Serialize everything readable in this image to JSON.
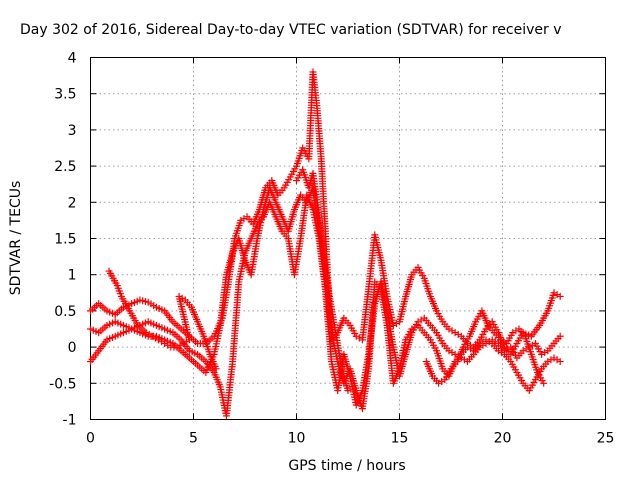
{
  "chart_data": {
    "type": "scatter",
    "title": "Day 302 of 2016, Sidereal Day-to-day VTEC variation (SDTVAR) for receiver v",
    "xlabel": "GPS time / hours",
    "ylabel": "SDTVAR / TECUs",
    "xlim": [
      0,
      25
    ],
    "ylim": [
      -1,
      4
    ],
    "x_ticks": [
      0,
      5,
      10,
      15,
      20,
      25
    ],
    "y_ticks": [
      -1,
      -0.5,
      0,
      0.5,
      1,
      1.5,
      2,
      2.5,
      3,
      3.5,
      4
    ],
    "x_tick_labels": [
      "0",
      "5",
      "10",
      "15",
      "20",
      "25"
    ],
    "y_tick_labels": [
      "-1",
      "-0.5",
      "0",
      "0.5",
      "1",
      "1.5",
      "2",
      "2.5",
      "3",
      "3.5",
      "4"
    ],
    "grid": true,
    "marker": "+",
    "color": "#ff0000",
    "series": [
      {
        "points": [
          [
            0.0,
            0.5
          ],
          [
            0.4,
            0.6
          ],
          [
            0.8,
            0.5
          ],
          [
            1.2,
            0.45
          ],
          [
            1.6,
            0.55
          ],
          [
            2.0,
            0.6
          ],
          [
            2.4,
            0.65
          ],
          [
            2.8,
            0.62
          ],
          [
            3.2,
            0.55
          ],
          [
            3.6,
            0.5
          ],
          [
            4.0,
            0.35
          ],
          [
            4.4,
            0.25
          ],
          [
            4.8,
            0.15
          ],
          [
            5.2,
            0.05
          ],
          [
            5.6,
            0.05
          ],
          [
            6.0,
            0.15
          ],
          [
            6.4,
            0.4
          ],
          [
            6.7,
            0.9
          ],
          [
            7.0,
            1.5
          ],
          [
            7.3,
            1.75
          ],
          [
            7.6,
            1.8
          ],
          [
            7.9,
            1.7
          ],
          [
            8.2,
            1.9
          ],
          [
            8.5,
            2.2
          ],
          [
            8.8,
            2.3
          ],
          [
            9.1,
            2.1
          ],
          [
            9.4,
            2.2
          ],
          [
            9.7,
            2.35
          ],
          [
            10.0,
            2.5
          ],
          [
            10.3,
            2.75
          ],
          [
            10.6,
            2.6
          ],
          [
            10.8,
            3.8
          ],
          [
            11.0,
            3.3
          ],
          [
            11.2,
            2.6
          ],
          [
            11.4,
            1.6
          ],
          [
            11.6,
            0.5
          ],
          [
            11.8,
            0.1
          ],
          [
            12.0,
            0.2
          ],
          [
            12.3,
            0.4
          ],
          [
            12.6,
            0.3
          ],
          [
            12.9,
            0.15
          ],
          [
            13.2,
            0.1
          ],
          [
            13.5,
            0.8
          ],
          [
            13.8,
            1.55
          ],
          [
            14.1,
            1.2
          ],
          [
            14.4,
            0.7
          ],
          [
            14.7,
            0.3
          ],
          [
            15.0,
            0.35
          ],
          [
            15.3,
            0.7
          ],
          [
            15.6,
            1.0
          ],
          [
            15.9,
            1.1
          ],
          [
            16.2,
            0.95
          ],
          [
            16.5,
            0.7
          ],
          [
            16.8,
            0.5
          ],
          [
            17.1,
            0.35
          ],
          [
            17.4,
            0.25
          ],
          [
            17.7,
            0.2
          ],
          [
            18.0,
            0.15
          ],
          [
            18.3,
            0.05
          ],
          [
            18.6,
            0.0
          ],
          [
            18.9,
            0.1
          ],
          [
            19.2,
            0.25
          ],
          [
            19.5,
            0.35
          ],
          [
            19.8,
            0.2
          ],
          [
            20.1,
            0.0
          ],
          [
            20.4,
            -0.1
          ],
          [
            20.7,
            0.05
          ],
          [
            21.0,
            0.2
          ],
          [
            21.4,
            0.15
          ],
          [
            21.8,
            0.3
          ],
          [
            22.2,
            0.5
          ],
          [
            22.5,
            0.75
          ],
          [
            22.8,
            0.7
          ]
        ]
      },
      {
        "points": [
          [
            0.0,
            0.25
          ],
          [
            0.4,
            0.2
          ],
          [
            0.8,
            0.3
          ],
          [
            1.2,
            0.35
          ],
          [
            1.6,
            0.3
          ],
          [
            2.0,
            0.25
          ],
          [
            2.4,
            0.2
          ],
          [
            2.8,
            0.15
          ],
          [
            3.2,
            0.15
          ],
          [
            3.6,
            0.1
          ],
          [
            4.0,
            0.05
          ],
          [
            4.4,
            -0.05
          ],
          [
            4.8,
            -0.15
          ],
          [
            5.2,
            -0.25
          ],
          [
            5.6,
            -0.35
          ],
          [
            6.0,
            -0.1
          ],
          [
            6.3,
            0.3
          ],
          [
            6.6,
            1.0
          ],
          [
            6.9,
            1.3
          ],
          [
            7.2,
            1.5
          ],
          [
            7.5,
            1.2
          ],
          [
            7.8,
            1.0
          ],
          [
            8.1,
            1.5
          ],
          [
            8.4,
            1.9
          ],
          [
            8.7,
            2.2
          ],
          [
            9.0,
            2.0
          ],
          [
            9.3,
            1.8
          ],
          [
            9.6,
            1.6
          ],
          [
            9.9,
            1.9
          ],
          [
            10.2,
            2.1
          ],
          [
            10.5,
            2.0
          ],
          [
            10.8,
            2.2
          ],
          [
            11.1,
            1.6
          ],
          [
            11.4,
            0.9
          ],
          [
            11.7,
            0.2
          ],
          [
            12.0,
            -0.2
          ],
          [
            12.3,
            -0.5
          ],
          [
            12.6,
            -0.3
          ],
          [
            12.9,
            -0.6
          ],
          [
            13.2,
            -0.85
          ],
          [
            13.5,
            -0.3
          ],
          [
            13.8,
            0.9
          ],
          [
            14.1,
            0.8
          ],
          [
            14.4,
            0.3
          ],
          [
            14.7,
            -0.5
          ],
          [
            15.0,
            -0.3
          ],
          [
            15.3,
            0.1
          ],
          [
            15.6,
            0.25
          ],
          [
            15.9,
            0.3
          ],
          [
            16.2,
            0.2
          ],
          [
            16.5,
            0.1
          ],
          [
            16.8,
            -0.05
          ],
          [
            17.1,
            -0.3
          ],
          [
            17.4,
            -0.4
          ],
          [
            17.7,
            -0.2
          ],
          [
            18.0,
            -0.1
          ],
          [
            18.3,
            0.0
          ],
          [
            18.6,
            -0.05
          ],
          [
            18.9,
            0.05
          ],
          [
            19.2,
            0.1
          ],
          [
            19.5,
            0.05
          ],
          [
            19.8,
            -0.05
          ],
          [
            20.1,
            -0.1
          ],
          [
            20.4,
            -0.2
          ],
          [
            20.7,
            -0.35
          ],
          [
            21.0,
            -0.5
          ],
          [
            21.3,
            -0.6
          ],
          [
            21.6,
            -0.45
          ],
          [
            21.9,
            -0.3
          ],
          [
            22.2,
            -0.2
          ],
          [
            22.5,
            -0.15
          ],
          [
            22.8,
            -0.2
          ]
        ]
      },
      {
        "points": [
          [
            0.0,
            -0.2
          ],
          [
            0.4,
            -0.05
          ],
          [
            0.8,
            0.1
          ],
          [
            1.2,
            0.15
          ],
          [
            1.6,
            0.2
          ],
          [
            2.0,
            0.25
          ],
          [
            2.4,
            0.3
          ],
          [
            2.8,
            0.35
          ],
          [
            3.2,
            0.3
          ],
          [
            3.6,
            0.25
          ],
          [
            4.0,
            0.2
          ],
          [
            4.4,
            0.1
          ],
          [
            4.8,
            -0.05
          ],
          [
            5.2,
            -0.1
          ],
          [
            5.6,
            -0.2
          ],
          [
            6.0,
            -0.35
          ],
          [
            6.3,
            -0.55
          ],
          [
            6.6,
            -0.95
          ],
          [
            6.9,
            -0.2
          ],
          [
            7.2,
            0.9
          ],
          [
            7.5,
            1.3
          ],
          [
            7.8,
            1.5
          ],
          [
            8.1,
            1.7
          ],
          [
            8.4,
            1.8
          ],
          [
            8.7,
            2.0
          ],
          [
            9.0,
            1.8
          ],
          [
            9.3,
            1.6
          ],
          [
            9.6,
            1.5
          ],
          [
            9.9,
            1.0
          ],
          [
            10.2,
            1.5
          ],
          [
            10.5,
            2.1
          ],
          [
            10.8,
            1.9
          ],
          [
            11.1,
            1.5
          ],
          [
            11.4,
            0.8
          ],
          [
            11.7,
            -0.2
          ],
          [
            12.0,
            -0.6
          ],
          [
            12.3,
            -0.1
          ],
          [
            12.6,
            -0.4
          ],
          [
            12.9,
            -0.8
          ],
          [
            13.2,
            -0.6
          ],
          [
            13.5,
            -0.1
          ],
          [
            13.8,
            0.6
          ],
          [
            14.1,
            0.9
          ],
          [
            14.4,
            0.5
          ],
          [
            14.7,
            0.0
          ],
          [
            15.0,
            -0.4
          ],
          [
            15.3,
            -0.1
          ],
          [
            15.6,
            0.2
          ],
          [
            15.9,
            0.35
          ],
          [
            16.2,
            0.4
          ],
          [
            16.5,
            0.3
          ],
          [
            16.8,
            0.2
          ],
          [
            17.1,
            0.05
          ],
          [
            17.4,
            -0.05
          ],
          [
            17.7,
            -0.1
          ],
          [
            18.0,
            -0.15
          ],
          [
            18.3,
            -0.2
          ],
          [
            18.6,
            -0.1
          ],
          [
            18.9,
            0.0
          ],
          [
            19.2,
            0.05
          ],
          [
            19.5,
            0.1
          ],
          [
            19.8,
            0.05
          ],
          [
            20.1,
            -0.05
          ],
          [
            20.4,
            0.0
          ],
          [
            20.7,
            -0.15
          ],
          [
            21.0,
            -0.05
          ],
          [
            21.3,
            0.0
          ],
          [
            21.6,
            0.05
          ],
          [
            21.9,
            -0.1
          ],
          [
            22.2,
            -0.05
          ],
          [
            22.5,
            0.05
          ],
          [
            22.8,
            0.15
          ]
        ]
      },
      {
        "points": [
          [
            0.9,
            1.05
          ],
          [
            1.1,
            0.95
          ],
          [
            1.3,
            0.85
          ],
          [
            1.5,
            0.7
          ],
          [
            1.7,
            0.6
          ],
          [
            1.9,
            0.5
          ],
          [
            2.1,
            0.4
          ],
          [
            2.3,
            0.3
          ],
          [
            2.5,
            0.25
          ],
          [
            2.7,
            0.2
          ],
          [
            3.0,
            0.15
          ],
          [
            3.3,
            0.1
          ],
          [
            3.6,
            0.05
          ],
          [
            3.9,
            0.0
          ],
          [
            4.2,
            0.0
          ],
          [
            4.5,
            0.05
          ],
          [
            4.8,
            0.1
          ],
          [
            4.3,
            0.7
          ],
          [
            4.6,
            0.65
          ],
          [
            4.9,
            0.55
          ],
          [
            5.2,
            0.35
          ],
          [
            5.5,
            0.15
          ],
          [
            5.8,
            -0.1
          ],
          [
            6.1,
            -0.3
          ],
          [
            10.0,
            2.3
          ],
          [
            10.3,
            2.45
          ],
          [
            10.6,
            2.2
          ],
          [
            10.8,
            2.4
          ],
          [
            11.0,
            2.0
          ],
          [
            11.3,
            1.3
          ],
          [
            11.6,
            0.7
          ],
          [
            11.9,
            0.2
          ],
          [
            12.2,
            -0.3
          ],
          [
            12.5,
            -0.6
          ],
          [
            16.3,
            -0.2
          ],
          [
            16.6,
            -0.4
          ],
          [
            16.9,
            -0.5
          ],
          [
            17.2,
            -0.45
          ],
          [
            17.5,
            -0.3
          ],
          [
            17.8,
            -0.2
          ],
          [
            18.1,
            0.0
          ],
          [
            18.4,
            0.15
          ],
          [
            18.7,
            0.35
          ],
          [
            19.0,
            0.5
          ],
          [
            19.3,
            0.3
          ],
          [
            19.6,
            0.2
          ],
          [
            19.9,
            0.1
          ],
          [
            20.2,
            0.05
          ],
          [
            20.5,
            0.2
          ],
          [
            20.8,
            0.25
          ],
          [
            21.1,
            0.15
          ],
          [
            21.4,
            -0.1
          ],
          [
            21.7,
            -0.35
          ],
          [
            22.0,
            -0.5
          ]
        ]
      }
    ]
  }
}
